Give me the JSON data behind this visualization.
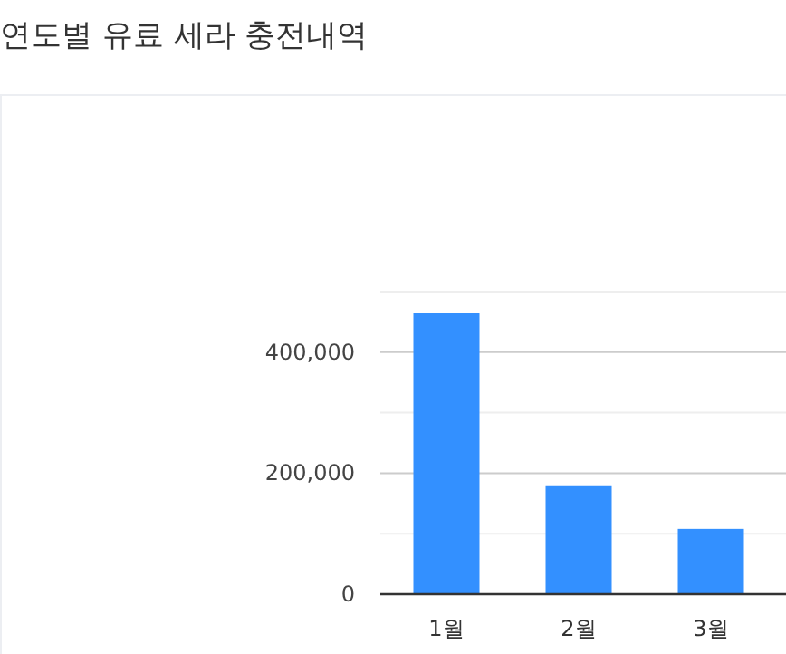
{
  "chart_data": {
    "type": "bar",
    "title": "연도별 유료 세라 충전내역",
    "categories": [
      "1월",
      "2월",
      "3월"
    ],
    "values": [
      465000,
      180000,
      108000
    ],
    "color": "#3390ff",
    "ylim": [
      0,
      500000
    ],
    "yticks": [
      0,
      {
        "value": 100000,
        "label": null
      },
      {
        "value": 200000,
        "label": "200,000"
      },
      {
        "value": 300000,
        "label": null
      },
      {
        "value": 400000,
        "label": "400,000"
      },
      {
        "value": 500000,
        "label": null
      }
    ],
    "grid": "y"
  }
}
